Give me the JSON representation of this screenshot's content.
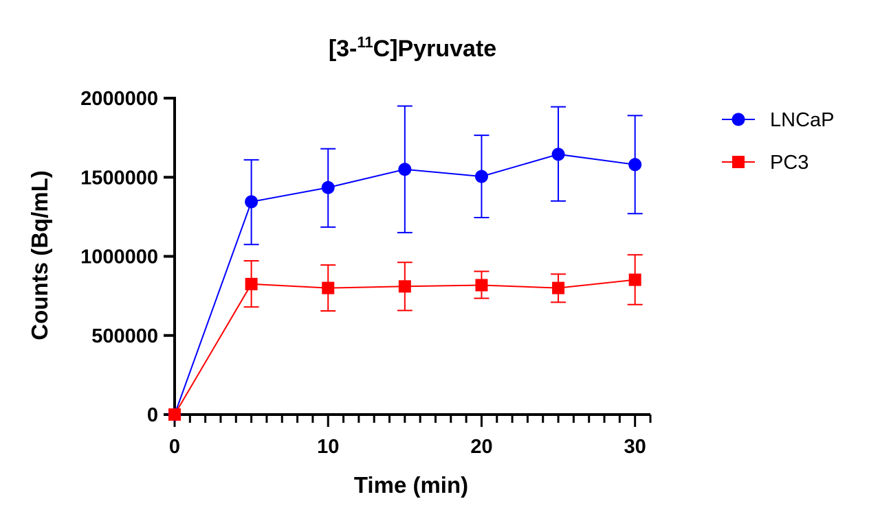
{
  "chart_data": {
    "type": "line",
    "title": {
      "prefix": "[3-",
      "superscript": "11",
      "suffix": "C]Pyruvate"
    },
    "xlabel": "Time (min)",
    "ylabel": "Counts (Bq/mL)",
    "xlim": [
      0,
      31
    ],
    "ylim": [
      0,
      2000000
    ],
    "x_ticks": [
      0,
      10,
      20,
      30
    ],
    "x_tick_labels": [
      "0",
      "10",
      "20",
      "30"
    ],
    "x_minor_tick_step": 1,
    "y_ticks": [
      0,
      500000,
      1000000,
      1500000,
      2000000
    ],
    "y_tick_labels": [
      "0",
      "500000",
      "1000000",
      "1500000",
      "2000000"
    ],
    "grid": false,
    "legend_position": "top-right",
    "error_bars": true,
    "series": [
      {
        "name": "LNCaP",
        "color": "#0000ff",
        "marker": "circle",
        "x": [
          0,
          5,
          10,
          15,
          20,
          25,
          30
        ],
        "y": [
          0,
          1345000,
          1435000,
          1550000,
          1505000,
          1645000,
          1580000
        ],
        "err_upper": [
          0,
          1610000,
          1680000,
          1950000,
          1765000,
          1945000,
          1890000
        ],
        "err_lower": [
          0,
          1075000,
          1185000,
          1150000,
          1245000,
          1350000,
          1270000
        ]
      },
      {
        "name": "PC3",
        "color": "#ff0000",
        "marker": "square",
        "x": [
          0,
          5,
          10,
          15,
          20,
          25,
          30
        ],
        "y": [
          0,
          825000,
          800000,
          810000,
          818000,
          800000,
          852000
        ],
        "err_upper": [
          0,
          972000,
          945000,
          962000,
          905000,
          888000,
          1010000
        ],
        "err_lower": [
          0,
          680000,
          655000,
          658000,
          735000,
          710000,
          695000
        ]
      }
    ]
  }
}
